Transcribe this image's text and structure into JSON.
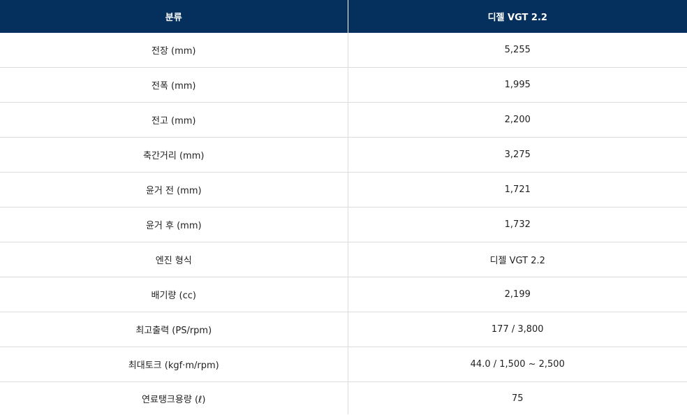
{
  "table": {
    "headers": [
      "분류",
      "디젤 VGT 2.2"
    ],
    "rows": [
      [
        "전장 (mm)",
        "5,255"
      ],
      [
        "전폭 (mm)",
        "1,995"
      ],
      [
        "전고 (mm)",
        "2,200"
      ],
      [
        "축간거리 (mm)",
        "3,275"
      ],
      [
        "윤거 전 (mm)",
        "1,721"
      ],
      [
        "윤거 후 (mm)",
        "1,732"
      ],
      [
        "엔진 형식",
        "디젤 VGT 2.2"
      ],
      [
        "배기량 (cc)",
        "2,199"
      ],
      [
        "최고출력 (PS/rpm)",
        "177 / 3,800"
      ],
      [
        "최대토크 (kgf·m/rpm)",
        "44.0 / 1,500 ~ 2,500"
      ],
      [
        "연료탱크용량 (ℓ)",
        "75"
      ]
    ]
  },
  "colors": {
    "header_background": "#05305e",
    "header_text": "#ffffff",
    "row_divider": "#dcdcdc"
  }
}
